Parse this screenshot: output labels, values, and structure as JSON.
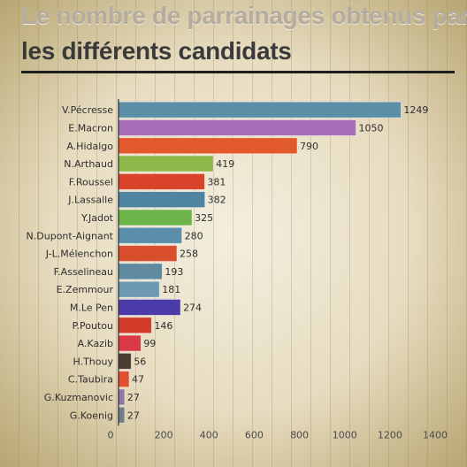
{
  "header": {
    "line1": "Le nombre de parrainages obtenus par",
    "line2": "les différents candidats"
  },
  "chart_data": {
    "type": "bar",
    "orientation": "horizontal",
    "categories": [
      "V.Pécresse",
      "E.Macron",
      "A.Hidalgo",
      "N.Arthaud",
      "F.Roussel",
      "J.Lassalle",
      "Y.Jadot",
      "N.Dupont-Aignant",
      "J-L.Mélenchon",
      "F.Asselineau",
      "E.Zemmour",
      "M.Le Pen",
      "P.Poutou",
      "A.Kazib",
      "H.Thouy",
      "C.Taubira",
      "G.Kuzmanovic",
      "G.Koenig"
    ],
    "values": [
      1249,
      1050,
      790,
      419,
      381,
      382,
      325,
      280,
      258,
      193,
      181,
      274,
      146,
      99,
      56,
      47,
      27,
      27
    ],
    "colors": [
      "#5b8fa8",
      "#a86fb8",
      "#e25a2c",
      "#8fb84a",
      "#d9432a",
      "#4e84a0",
      "#6cb34a",
      "#5a8eaa",
      "#d94e2c",
      "#5f8aa0",
      "#6d98b2",
      "#4a3ba8",
      "#d33b2a",
      "#d93a44",
      "#4a3f30",
      "#e0502e",
      "#8a78a8",
      "#6f7d8a"
    ],
    "xlim": [
      0,
      1400
    ],
    "xticks": [
      0,
      200,
      400,
      600,
      800,
      1000,
      1200,
      1400
    ],
    "title": "Le nombre de parrainages obtenus par les différents candidats",
    "xlabel": "",
    "ylabel": "",
    "grid": false,
    "legend": "none"
  }
}
